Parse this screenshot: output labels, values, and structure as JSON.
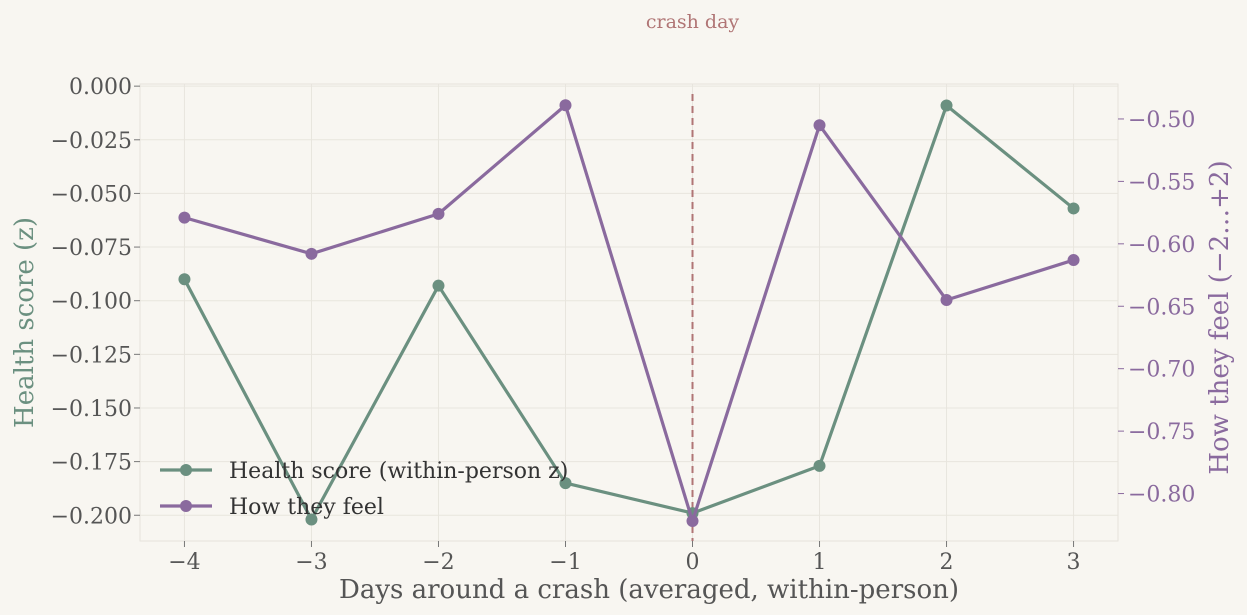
{
  "chart_data": {
    "type": "line",
    "x": [
      -4,
      -3,
      -2,
      -1,
      0,
      1,
      2,
      3
    ],
    "xlabel": "Days around a crash (averaged, within-person)",
    "x_tick_labels": [
      "−4",
      "−3",
      "−2",
      "−1",
      "0",
      "1",
      "2",
      "3"
    ],
    "xlim": [
      -4.35,
      3.35
    ],
    "series": [
      {
        "name": "Health score (within-person z)",
        "axis": "left",
        "color": "#6b9080",
        "values": [
          -0.09,
          -0.202,
          -0.093,
          -0.185,
          -0.199,
          -0.177,
          -0.009,
          -0.057
        ]
      },
      {
        "name": "How they feel",
        "axis": "right",
        "color": "#8a6a9e",
        "values": [
          -0.579,
          -0.608,
          -0.576,
          -0.489,
          -0.822,
          -0.505,
          -0.645,
          -0.613
        ]
      }
    ],
    "y_left": {
      "label": "Health score (z)",
      "color": "#6b9080",
      "ylim": [
        -0.212,
        0.001
      ],
      "ticks": [
        0.0,
        -0.025,
        -0.05,
        -0.075,
        -0.1,
        -0.125,
        -0.15,
        -0.175,
        -0.2
      ],
      "tick_labels": [
        "0.000",
        "−0.025",
        "−0.050",
        "−0.075",
        "−0.100",
        "−0.125",
        "−0.150",
        "−0.175",
        "−0.200"
      ]
    },
    "y_right": {
      "label": "How they feel (−2…+2)",
      "color": "#8a6a9e",
      "ylim": [
        -0.838,
        -0.472
      ],
      "ticks": [
        -0.5,
        -0.55,
        -0.6,
        -0.65,
        -0.7,
        -0.75,
        -0.8
      ],
      "tick_labels": [
        "−0.50",
        "−0.55",
        "−0.60",
        "−0.65",
        "−0.70",
        "−0.75",
        "−0.80"
      ]
    },
    "vline": {
      "x": 0,
      "label": "crash day",
      "color": "#b07575"
    },
    "grid": true,
    "legend": "lower-left"
  }
}
